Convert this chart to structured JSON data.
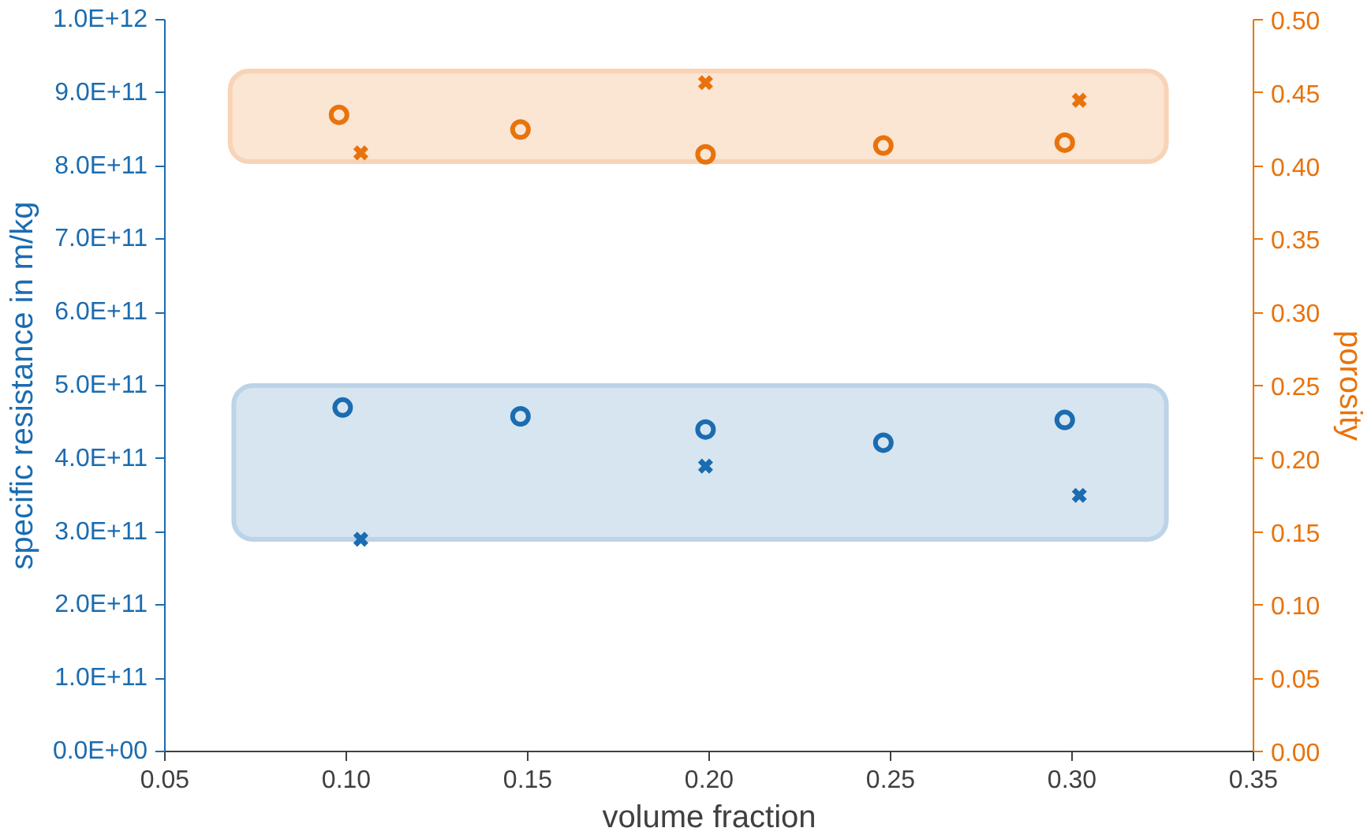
{
  "chart_data": {
    "type": "scatter",
    "xlabel": "volume fraction",
    "ylabel": "specific resistance in m/kg",
    "y2label": "porosity",
    "xlim": [
      0.05,
      0.35
    ],
    "xticks": [
      {
        "value": 0.05,
        "label": "0.05"
      },
      {
        "value": 0.1,
        "label": "0.10"
      },
      {
        "value": 0.15,
        "label": "0.15"
      },
      {
        "value": 0.2,
        "label": "0.20"
      },
      {
        "value": 0.25,
        "label": "0.25"
      },
      {
        "value": 0.3,
        "label": "0.30"
      },
      {
        "value": 0.35,
        "label": "0.35"
      }
    ],
    "ylim": [
      0,
      1000000000000.0
    ],
    "yticks": [
      {
        "value": 0,
        "label": "0.0E+00"
      },
      {
        "value": 100000000000.0,
        "label": "1.0E+11"
      },
      {
        "value": 200000000000.0,
        "label": "2.0E+11"
      },
      {
        "value": 300000000000.0,
        "label": "3.0E+11"
      },
      {
        "value": 400000000000.0,
        "label": "4.0E+11"
      },
      {
        "value": 500000000000.0,
        "label": "5.0E+11"
      },
      {
        "value": 600000000000.0,
        "label": "6.0E+11"
      },
      {
        "value": 700000000000.0,
        "label": "7.0E+11"
      },
      {
        "value": 800000000000.0,
        "label": "8.0E+11"
      },
      {
        "value": 900000000000.0,
        "label": "9.0E+11"
      },
      {
        "value": 1000000000000.0,
        "label": "1.0E+12"
      }
    ],
    "y2lim": [
      0,
      0.5
    ],
    "y2ticks": [
      {
        "value": 0,
        "label": "0.00"
      },
      {
        "value": 0.05,
        "label": "0.05"
      },
      {
        "value": 0.1,
        "label": "0.10"
      },
      {
        "value": 0.15,
        "label": "0.15"
      },
      {
        "value": 0.2,
        "label": "0.20"
      },
      {
        "value": 0.25,
        "label": "0.25"
      },
      {
        "value": 0.3,
        "label": "0.30"
      },
      {
        "value": 0.35,
        "label": "0.35"
      },
      {
        "value": 0.4,
        "label": "0.40"
      },
      {
        "value": 0.45,
        "label": "0.45"
      },
      {
        "value": 0.5,
        "label": "0.50"
      }
    ],
    "grid": false,
    "bands": [
      {
        "axis": "y",
        "from": 290000000000.0,
        "to": 500000000000.0,
        "color": "#bcd3e8"
      },
      {
        "axis": "y2",
        "from": 0.403,
        "to": 0.465,
        "color": "#f8d3b6"
      }
    ],
    "series": [
      {
        "color": "#1b6cb0",
        "marker": "circle",
        "x": [
          0.099,
          0.148,
          0.199,
          0.248,
          0.298
        ],
        "values": [
          470000000000.0,
          458000000000.0,
          440000000000.0,
          422000000000.0,
          453000000000.0
        ]
      },
      {
        "color": "#1b6cb0",
        "marker": "cross",
        "x": [
          0.104,
          0.199,
          0.302
        ],
        "values": [
          290000000000.0,
          390000000000.0,
          350000000000.0
        ]
      },
      {
        "color": "#e8730c",
        "marker": "circle",
        "axis": "y2",
        "x": [
          0.098,
          0.148,
          0.199,
          0.248,
          0.298
        ],
        "values": [
          0.435,
          0.425,
          0.408,
          0.414,
          0.416
        ]
      },
      {
        "color": "#e8730c",
        "marker": "cross",
        "axis": "y2",
        "x": [
          0.104,
          0.199,
          0.302
        ],
        "values": [
          0.409,
          0.457,
          0.445
        ]
      }
    ]
  }
}
